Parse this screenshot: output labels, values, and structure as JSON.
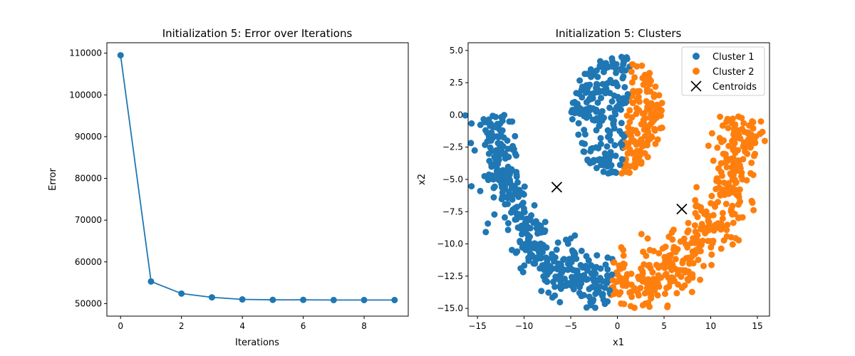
{
  "chart_data": [
    {
      "type": "line",
      "title": "Initialization 5: Error over Iterations",
      "xlabel": "Iterations",
      "ylabel": "Error",
      "xlim": [
        -0.45,
        9.45
      ],
      "ylim": [
        47000,
        112500
      ],
      "xticks": [
        0,
        2,
        4,
        6,
        8
      ],
      "yticks": [
        50000,
        60000,
        70000,
        80000,
        90000,
        100000,
        110000
      ],
      "grid": false,
      "series": [
        {
          "color": "#1f77b4",
          "x": [
            0,
            1,
            2,
            3,
            4,
            5,
            6,
            7,
            8,
            9
          ],
          "values": [
            109500,
            55300,
            52400,
            51500,
            51000,
            50900,
            50900,
            50850,
            50850,
            50850
          ]
        }
      ]
    },
    {
      "type": "scatter",
      "title": "Initialization 5: Clusters",
      "xlabel": "x1",
      "ylabel": "x2",
      "xlim": [
        -16.0,
        16.3
      ],
      "ylim": [
        -15.6,
        5.6
      ],
      "xticks": [
        -15,
        -10,
        -5,
        0,
        5,
        10,
        15
      ],
      "yticks": [
        -15.0,
        -12.5,
        -10.0,
        -7.5,
        -5.0,
        -2.5,
        0.0,
        2.5,
        5.0
      ],
      "legend_position": "upper right",
      "grid": false,
      "series": [
        {
          "name": "Cluster 1",
          "color": "#1f77b4",
          "marker": "circle"
        },
        {
          "name": "Cluster 2",
          "color": "#ff7f0e",
          "marker": "circle"
        },
        {
          "name": "Centroids",
          "color": "#000000",
          "marker": "x",
          "points": [
            [
              -6.5,
              -5.6
            ],
            [
              6.9,
              -7.3
            ]
          ]
        }
      ]
    }
  ]
}
